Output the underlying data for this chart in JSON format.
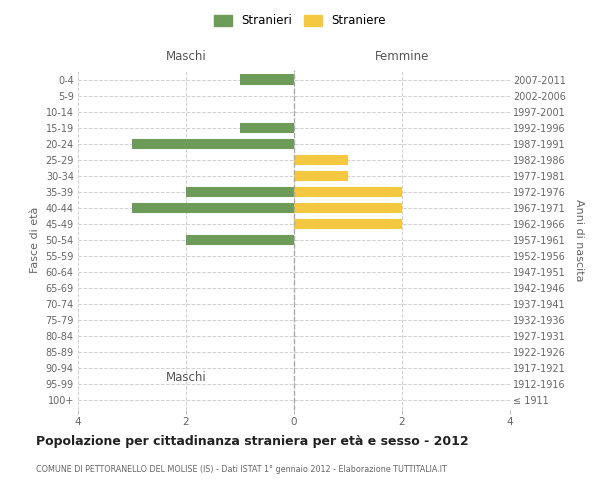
{
  "age_groups": [
    "100+",
    "95-99",
    "90-94",
    "85-89",
    "80-84",
    "75-79",
    "70-74",
    "65-69",
    "60-64",
    "55-59",
    "50-54",
    "45-49",
    "40-44",
    "35-39",
    "30-34",
    "25-29",
    "20-24",
    "15-19",
    "10-14",
    "5-9",
    "0-4"
  ],
  "birth_years": [
    "≤ 1911",
    "1912-1916",
    "1917-1921",
    "1922-1926",
    "1927-1931",
    "1932-1936",
    "1937-1941",
    "1942-1946",
    "1947-1951",
    "1952-1956",
    "1957-1961",
    "1962-1966",
    "1967-1971",
    "1972-1976",
    "1977-1981",
    "1982-1986",
    "1987-1991",
    "1992-1996",
    "1997-2001",
    "2002-2006",
    "2007-2011"
  ],
  "maschi": [
    0,
    0,
    0,
    0,
    0,
    0,
    0,
    0,
    0,
    0,
    2,
    0,
    3,
    2,
    0,
    0,
    3,
    1,
    0,
    0,
    1
  ],
  "femmine": [
    0,
    0,
    0,
    0,
    0,
    0,
    0,
    0,
    0,
    0,
    0,
    2,
    2,
    2,
    1,
    1,
    0,
    0,
    0,
    0,
    0
  ],
  "maschi_color": "#6d9b5a",
  "femmine_color": "#f5c842",
  "xlim": 4,
  "title": "Popolazione per cittadinanza straniera per età e sesso - 2012",
  "subtitle": "COMUNE DI PETTORANELLO DEL MOLISE (IS) - Dati ISTAT 1° gennaio 2012 - Elaborazione TUTTITALIA.IT",
  "ylabel_left": "Fasce di età",
  "ylabel_right": "Anni di nascita",
  "xlabel_left": "Maschi",
  "xlabel_right": "Femmine",
  "legend_maschi": "Stranieri",
  "legend_femmine": "Straniere",
  "bg_color": "#ffffff",
  "grid_color": "#d0d0d0",
  "bar_height": 0.65
}
